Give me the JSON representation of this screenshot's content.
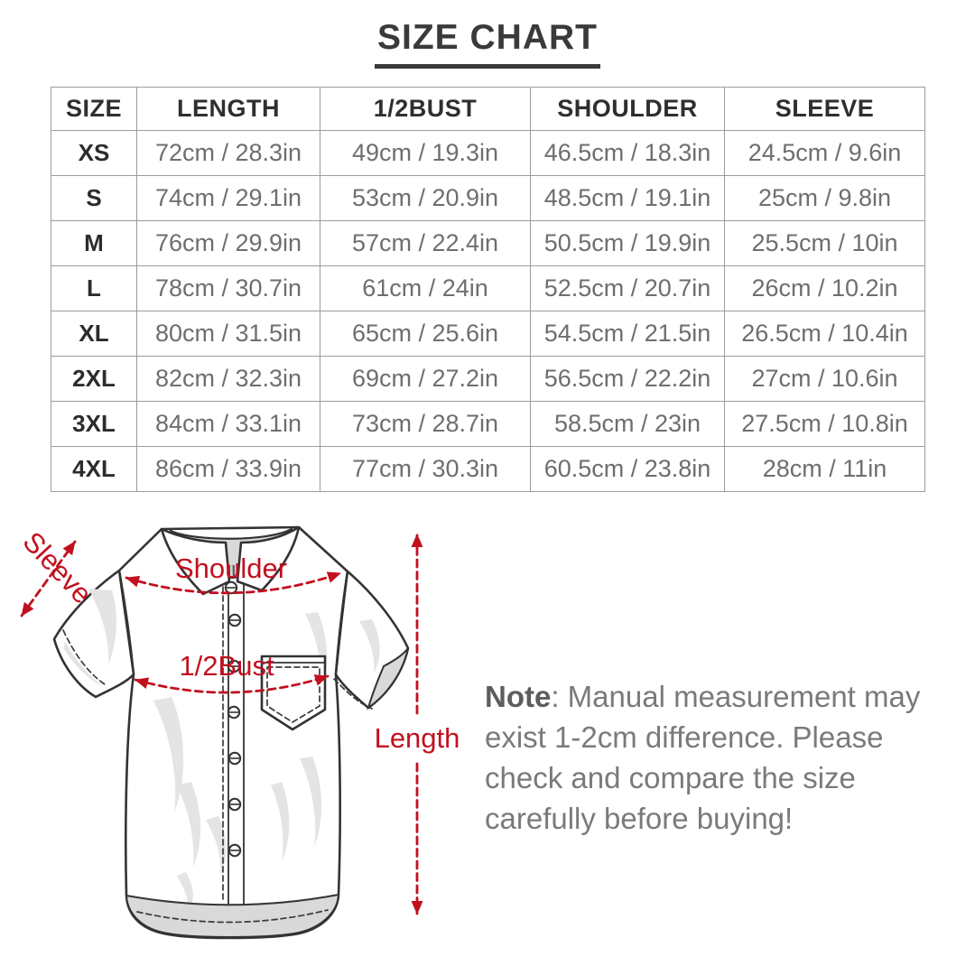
{
  "title": "SIZE CHART",
  "chart_data": {
    "type": "table",
    "title": "SIZE CHART",
    "columns": [
      "SIZE",
      "LENGTH",
      "1/2BUST",
      "SHOULDER",
      "SLEEVE"
    ],
    "rows": [
      [
        "XS",
        "72cm / 28.3in",
        "49cm / 19.3in",
        "46.5cm / 18.3in",
        "24.5cm / 9.6in"
      ],
      [
        "S",
        "74cm / 29.1in",
        "53cm / 20.9in",
        "48.5cm / 19.1in",
        "25cm / 9.8in"
      ],
      [
        "M",
        "76cm / 29.9in",
        "57cm / 22.4in",
        "50.5cm / 19.9in",
        "25.5cm / 10in"
      ],
      [
        "L",
        "78cm / 30.7in",
        "61cm / 24in",
        "52.5cm / 20.7in",
        "26cm / 10.2in"
      ],
      [
        "XL",
        "80cm / 31.5in",
        "65cm / 25.6in",
        "54.5cm / 21.5in",
        "26.5cm / 10.4in"
      ],
      [
        "2XL",
        "82cm / 32.3in",
        "69cm / 27.2in",
        "56.5cm / 22.2in",
        "27cm / 10.6in"
      ],
      [
        "3XL",
        "84cm / 33.1in",
        "73cm / 28.7in",
        "58.5cm / 23in",
        "27.5cm / 10.8in"
      ],
      [
        "4XL",
        "86cm / 33.9in",
        "77cm / 30.3in",
        "60.5cm / 23.8in",
        "28cm / 11in"
      ]
    ]
  },
  "diagram": {
    "labels": {
      "sleeve": "Sleeve",
      "shoulder": "Shoulder",
      "half_bust": "1/2Bust",
      "length": "Length"
    }
  },
  "note": {
    "label": "Note",
    "text": ": Manual measurement may exist 1-2cm difference. Please check and compare the size carefully before buying!"
  },
  "colors": {
    "accent_red": "#c2101f",
    "heading_text": "#3a3a3a",
    "table_border": "#9c9c9c",
    "table_data_text": "#6e6e6e",
    "table_header_text": "#2f2f2f",
    "note_text": "#7a7a7a",
    "shirt_outline": "#333333",
    "shirt_shading": "#d9d9d9"
  }
}
